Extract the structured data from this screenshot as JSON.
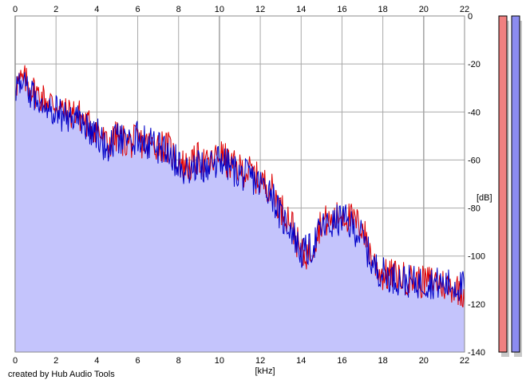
{
  "credit": "created by Hub Audio Tools",
  "colors": {
    "left_channel": "#e00000",
    "right_channel": "#0000c8",
    "fill": "#c4c4fc",
    "grid": "#a8a8a8",
    "meter_left": "#f08080",
    "meter_right": "#8c8cf0"
  },
  "meters": [
    {
      "name": "left",
      "level": 1.0
    },
    {
      "name": "right",
      "level": 1.0
    }
  ],
  "chart_data": {
    "type": "line",
    "xlabel": "[kHz]",
    "ylabel": "[dB]",
    "xlim": [
      0,
      22
    ],
    "ylim": [
      -140,
      0
    ],
    "x_ticks": [
      "0",
      "2",
      "4",
      "6",
      "8",
      "10",
      "12",
      "14",
      "16",
      "18",
      "20",
      "22"
    ],
    "y_ticks": [
      "0",
      "-20",
      "-40",
      "-60",
      "-80",
      "-100",
      "-120",
      "-140"
    ],
    "grid": true,
    "series": [
      {
        "color": "#e00000",
        "x": [
          0,
          0.5,
          1,
          1.5,
          2,
          2.5,
          3,
          3.5,
          4,
          4.5,
          5,
          5.5,
          6,
          6.5,
          7,
          7.5,
          8,
          8.5,
          9,
          9.5,
          10,
          10.5,
          11,
          11.5,
          12,
          12.5,
          13,
          13.5,
          14,
          14.5,
          15,
          15.5,
          16,
          16.5,
          17,
          17.5,
          18,
          18.5,
          19,
          19.5,
          20,
          20.5,
          21,
          21.5,
          22
        ],
        "y": [
          -28,
          -27,
          -32,
          -35,
          -37,
          -41,
          -40,
          -45,
          -47,
          -54,
          -50,
          -53,
          -52,
          -54,
          -53,
          -55,
          -61,
          -63,
          -59,
          -63,
          -57,
          -62,
          -64,
          -65,
          -69,
          -71,
          -80,
          -85,
          -100,
          -98,
          -85,
          -86,
          -82,
          -85,
          -88,
          -102,
          -108,
          -108,
          -109,
          -110,
          -111,
          -110,
          -112,
          -113,
          -115
        ]
      },
      {
        "color": "#0000c8",
        "x": [
          0,
          0.5,
          1,
          1.5,
          2,
          2.5,
          3,
          3.5,
          4,
          4.5,
          5,
          5.5,
          6,
          6.5,
          7,
          7.5,
          8,
          8.5,
          9,
          9.5,
          10,
          10.5,
          11,
          11.5,
          12,
          12.5,
          13,
          13.5,
          14,
          14.5,
          15,
          15.5,
          16,
          16.5,
          17,
          17.5,
          18,
          18.5,
          19,
          19.5,
          20,
          20.5,
          21,
          21.5,
          22
        ],
        "y": [
          -29,
          -30,
          -34,
          -36,
          -39,
          -43,
          -42,
          -46,
          -49,
          -56,
          -51,
          -54,
          -50,
          -53,
          -55,
          -56,
          -62,
          -64,
          -62,
          -64,
          -59,
          -63,
          -66,
          -67,
          -70,
          -72,
          -84,
          -88,
          -99,
          -97,
          -88,
          -87,
          -84,
          -88,
          -92,
          -104,
          -107,
          -109,
          -110,
          -111,
          -111,
          -111,
          -112,
          -112,
          -113
        ]
      }
    ]
  }
}
